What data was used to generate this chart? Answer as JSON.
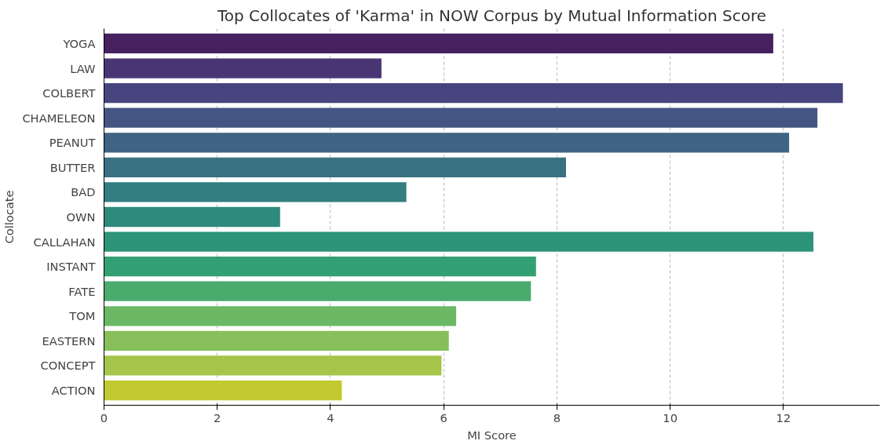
{
  "chart_data": {
    "type": "bar",
    "orientation": "horizontal",
    "title": "Top Collocates of 'Karma' in NOW Corpus by Mutual Information Score",
    "xlabel": "MI Score",
    "ylabel": "Collocate",
    "categories": [
      "YOGA",
      "LAW",
      "COLBERT",
      "CHAMELEON",
      "PEANUT",
      "BUTTER",
      "BAD",
      "OWN",
      "CALLAHAN",
      "INSTANT",
      "FATE",
      "TOM",
      "EASTERN",
      "CONCEPT",
      "ACTION"
    ],
    "values": [
      11.82,
      4.9,
      13.05,
      12.6,
      12.1,
      8.16,
      5.34,
      3.11,
      12.53,
      7.63,
      7.54,
      6.22,
      6.09,
      5.96,
      4.2
    ],
    "colors": [
      "#46205f",
      "#4a3574",
      "#47457f",
      "#445483",
      "#3f6382",
      "#397182",
      "#327e80",
      "#2e8a7d",
      "#2d9479",
      "#33a073",
      "#4aab6c",
      "#6bb864",
      "#87c05a",
      "#a5c54b",
      "#c0ca30"
    ],
    "xlim": [
      0,
      13.7
    ],
    "xticks": [
      0,
      2,
      4,
      6,
      8,
      10,
      12
    ],
    "grid": "x"
  }
}
